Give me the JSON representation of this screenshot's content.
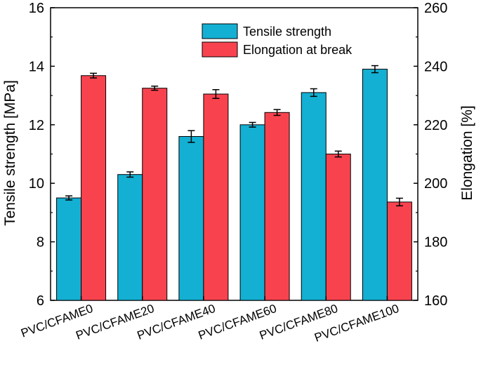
{
  "chart_data": {
    "type": "bar",
    "categories": [
      "PVC/CFAME0",
      "PVC/CFAME20",
      "PVC/CFAME40",
      "PVC/CFAME60",
      "PVC/CFAME80",
      "PVC/CFAME100"
    ],
    "series": [
      {
        "name": "Tensile strength",
        "axis": "left",
        "color": "#13b0d3",
        "values": [
          9.5,
          10.3,
          11.6,
          12.0,
          13.1,
          13.9
        ],
        "errors": [
          0.07,
          0.09,
          0.2,
          0.08,
          0.13,
          0.12
        ]
      },
      {
        "name": "Elongation at break",
        "axis": "right",
        "color": "#f8434f",
        "values": [
          236.8,
          232.5,
          230.5,
          224.2,
          210.0,
          193.6
        ],
        "errors": [
          0.8,
          0.7,
          1.5,
          1.0,
          1.0,
          1.3
        ]
      }
    ],
    "ylabel": "Tensile strength [MPa]",
    "ylabel_right": "Elongation [%]",
    "ylim": [
      6,
      16
    ],
    "ylim_right": [
      160,
      260
    ],
    "yticks": [
      "6",
      "8",
      "10",
      "12",
      "14",
      "16"
    ],
    "yticks_right": [
      "160",
      "180",
      "200",
      "220",
      "240",
      "260"
    ],
    "legend_position": "top-right",
    "grid": false
  }
}
